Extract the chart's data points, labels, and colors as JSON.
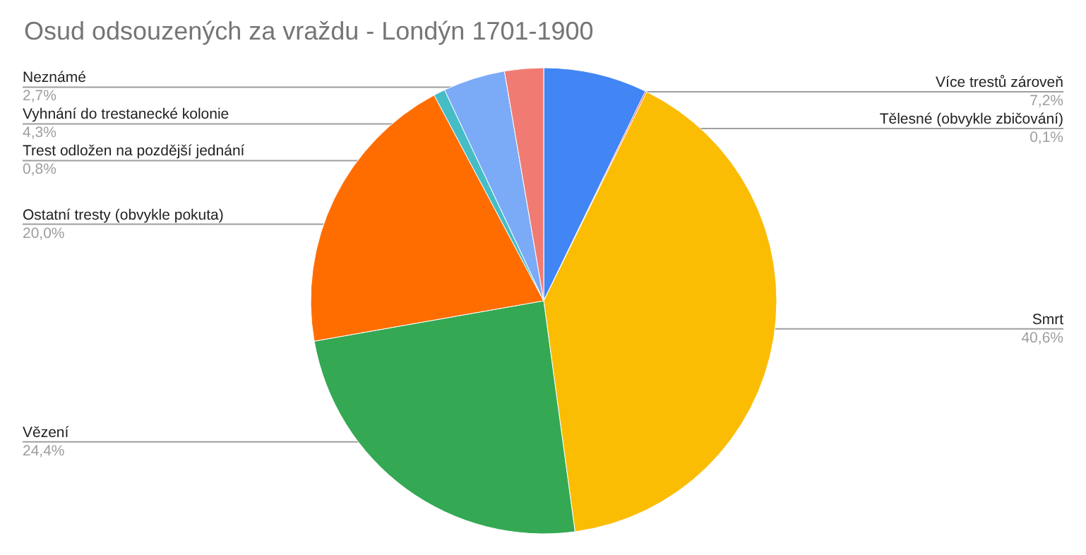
{
  "chart_data": {
    "type": "pie",
    "title": "Osud odsouzených za vraždu - Londýn 1701-1900",
    "categories": [
      "Více trestů zároveň",
      "Tělesné (obvykle zbičování)",
      "Smrt",
      "Vězení",
      "Ostatní tresty (obvykle pokuta)",
      "Trest odložen na pozdější jednání",
      "Vyhnání do trestanecké kolonie",
      "Neznámé"
    ],
    "values": [
      7.2,
      0.1,
      40.6,
      24.4,
      20.0,
      0.8,
      4.3,
      2.7
    ],
    "colors": [
      "#4285f4",
      "#ea4335",
      "#fbbc04",
      "#34a853",
      "#ff6d01",
      "#46bdc6",
      "#7baaf7",
      "#f07b72"
    ],
    "value_labels": [
      "7,2%",
      "0,1%",
      "40,6%",
      "24,4%",
      "20,0%",
      "0,8%",
      "4,3%",
      "2,7%"
    ],
    "legend": false
  }
}
